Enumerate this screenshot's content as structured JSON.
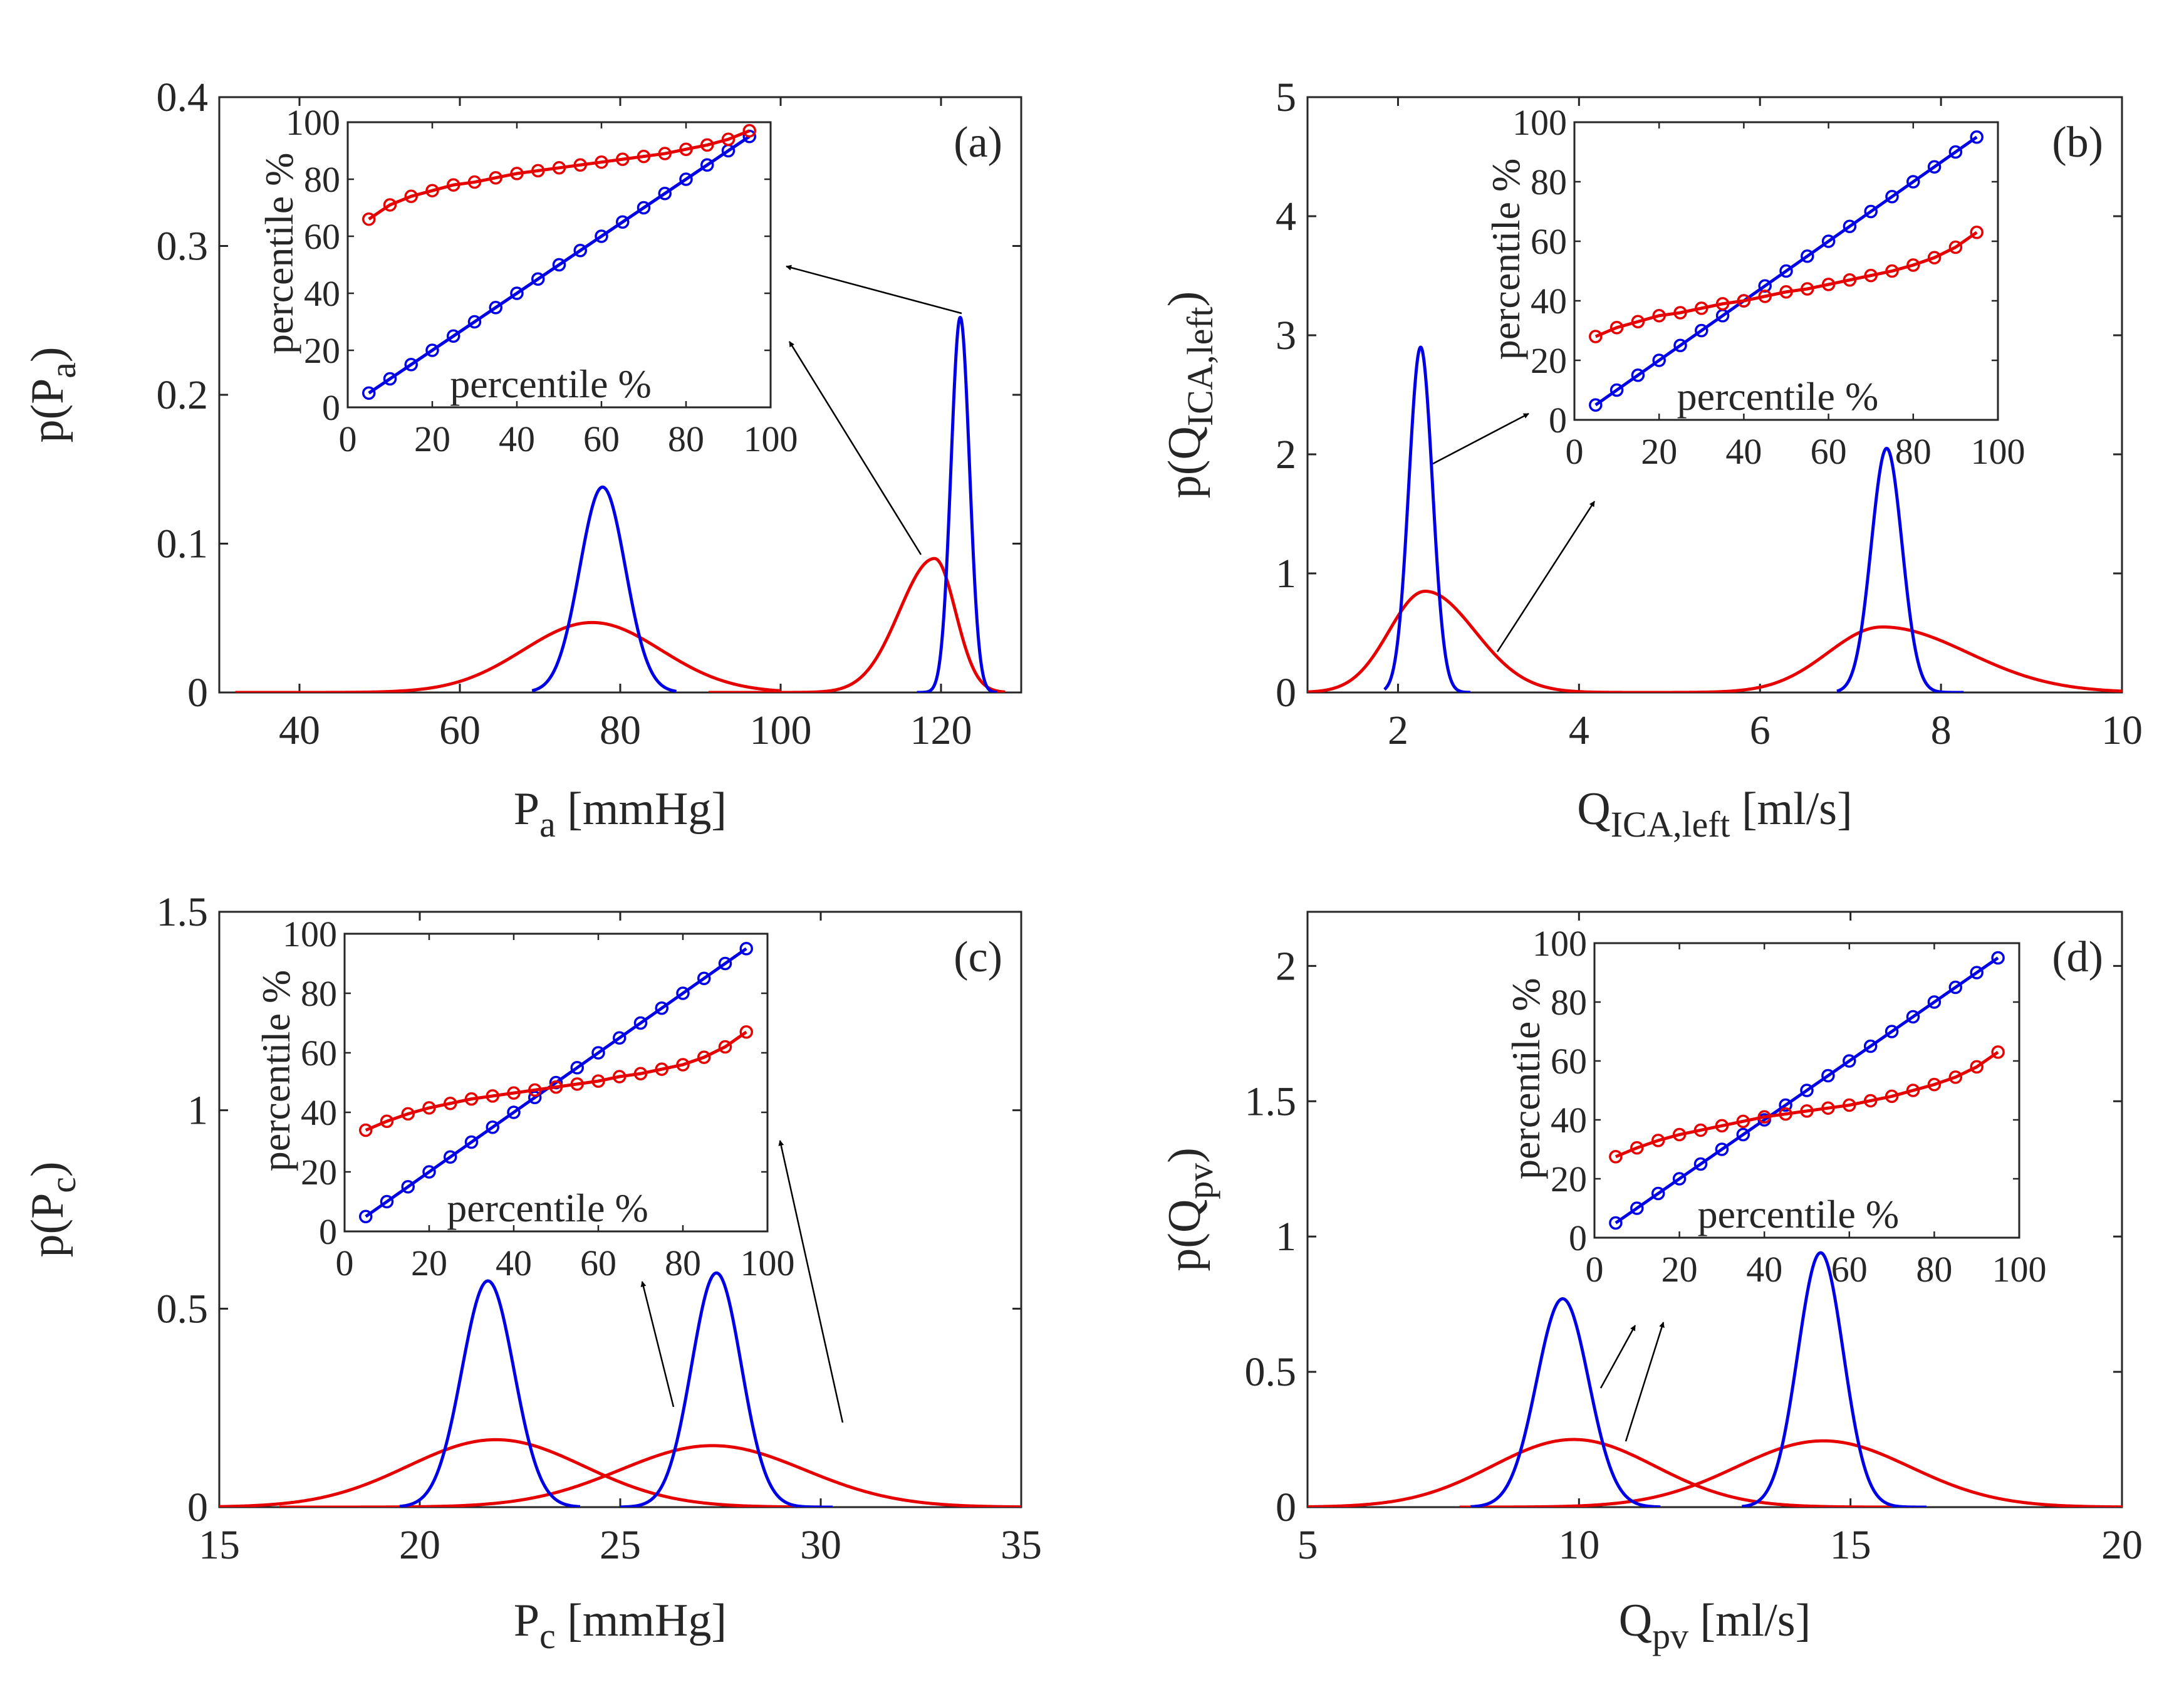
{
  "colors": {
    "blue": "#0000e6",
    "red": "#e60000",
    "axis": "#262626",
    "arrow": "#000000"
  },
  "chart_data": [
    {
      "type": "line",
      "panel_label": "(a)",
      "xlabel": {
        "main": "P",
        "sub": "a",
        "unit": " [mmHg]"
      },
      "ylabel": {
        "pre": "p(P",
        "sub": "a",
        "post": ")"
      },
      "xlim": [
        30,
        130
      ],
      "ylim": [
        0,
        0.4
      ],
      "xticks": [
        40,
        60,
        80,
        100,
        120
      ],
      "xticklabels": [
        "40",
        "60",
        "80",
        "100",
        "120"
      ],
      "yticks": [
        0,
        0.1,
        0.2,
        0.3,
        0.4
      ],
      "yticklabels": [
        "0",
        "0.1",
        "0.2",
        "0.3",
        "0.4"
      ],
      "grid": false,
      "series": [
        {
          "color": "blue",
          "components": [
            {
              "type": "gauss",
              "mu": 77.8,
              "sigma": 2.85,
              "peak": 0.138,
              "x0": 69,
              "x1": 87
            },
            {
              "type": "gauss",
              "mu": 122.4,
              "sigma": 1.15,
              "peak": 0.252,
              "x0": 117,
              "x1": 127
            }
          ]
        },
        {
          "color": "red",
          "components": [
            {
              "type": "gauss",
              "mu": 76.5,
              "sigma": 8.6,
              "peak": 0.047,
              "x0": 32,
              "x1": 100
            },
            {
              "type": "skewgauss",
              "mu": 119.2,
              "sigmaL": 4.4,
              "sigmaR": 2.6,
              "peak": 0.09,
              "x0": 91,
              "x1": 128
            }
          ]
        }
      ],
      "inset": {
        "xlim": [
          0,
          100
        ],
        "ylim": [
          0,
          100
        ],
        "xticks": [
          0,
          20,
          40,
          60,
          80,
          100
        ],
        "xticklabels": [
          "0",
          "20",
          "40",
          "60",
          "80",
          "100"
        ],
        "yticks": [
          0,
          20,
          40,
          60,
          80,
          100
        ],
        "yticklabels": [
          "0",
          "20",
          "40",
          "60",
          "80",
          "100"
        ],
        "xlabel": "percentile %",
        "ylabel": "percentile %",
        "x": [
          5,
          10,
          15,
          20,
          25,
          30,
          35,
          40,
          45,
          50,
          55,
          60,
          65,
          70,
          75,
          80,
          85,
          90,
          95
        ],
        "series": [
          {
            "color": "blue",
            "values": [
              5,
              10,
              15,
              20,
              25,
              30,
              35,
              40,
              45,
              50,
              55,
              60,
              65,
              70,
              75,
              80,
              85,
              90,
              95
            ]
          },
          {
            "color": "red",
            "values": [
              66,
              71,
              74,
              76,
              78,
              79,
              80.5,
              82,
              83,
              84,
              85,
              86,
              87,
              88,
              89,
              90.5,
              92,
              94,
              97
            ]
          }
        ]
      }
    },
    {
      "type": "line",
      "panel_label": "(b)",
      "xlabel": {
        "main": "Q",
        "sub": "ICA,left",
        "unit": " [ml/s]"
      },
      "ylabel": {
        "pre": "p(Q",
        "sub": "ICA,left",
        "post": ")"
      },
      "xlim": [
        1,
        10
      ],
      "ylim": [
        0,
        5
      ],
      "xticks": [
        2,
        4,
        6,
        8,
        10
      ],
      "xticklabels": [
        "2",
        "4",
        "6",
        "8",
        "10"
      ],
      "yticks": [
        0,
        1,
        2,
        3,
        4,
        5
      ],
      "yticklabels": [
        "0",
        "1",
        "2",
        "3",
        "4",
        "5"
      ],
      "grid": false,
      "series": [
        {
          "color": "blue",
          "components": [
            {
              "type": "gauss",
              "mu": 2.25,
              "sigma": 0.13,
              "peak": 2.9,
              "x0": 1.85,
              "x1": 2.8
            },
            {
              "type": "gauss",
              "mu": 7.4,
              "sigma": 0.17,
              "peak": 2.05,
              "x0": 6.85,
              "x1": 8.25
            }
          ]
        },
        {
          "color": "red",
          "components": [
            {
              "type": "skewgauss",
              "mu": 2.3,
              "sigmaL": 0.4,
              "sigmaR": 0.55,
              "peak": 0.85,
              "x0": 1.0,
              "x1": 5.3
            },
            {
              "type": "skewgauss",
              "mu": 7.35,
              "sigmaL": 0.6,
              "sigmaR": 0.95,
              "peak": 0.55,
              "x0": 4.6,
              "x1": 10.0
            }
          ]
        }
      ],
      "inset": {
        "xlim": [
          0,
          100
        ],
        "ylim": [
          0,
          100
        ],
        "xticks": [
          0,
          20,
          40,
          60,
          80,
          100
        ],
        "xticklabels": [
          "0",
          "20",
          "40",
          "60",
          "80",
          "100"
        ],
        "yticks": [
          0,
          20,
          40,
          60,
          80,
          100
        ],
        "yticklabels": [
          "0",
          "20",
          "40",
          "60",
          "80",
          "100"
        ],
        "xlabel": "percentile %",
        "ylabel": "percentile %",
        "x": [
          5,
          10,
          15,
          20,
          25,
          30,
          35,
          40,
          45,
          50,
          55,
          60,
          65,
          70,
          75,
          80,
          85,
          90,
          95
        ],
        "series": [
          {
            "color": "blue",
            "values": [
              5,
              10,
              15,
              20,
              25,
              30,
              35,
              40,
              45,
              50,
              55,
              60,
              65,
              70,
              75,
              80,
              85,
              90,
              95
            ]
          },
          {
            "color": "red",
            "values": [
              28,
              31,
              33,
              35,
              36,
              37.5,
              39,
              40,
              41.5,
              43,
              44,
              45.5,
              47,
              48.5,
              50,
              52,
              54.5,
              58,
              63
            ]
          }
        ]
      }
    },
    {
      "type": "line",
      "panel_label": "(c)",
      "xlabel": {
        "main": "P",
        "sub": "c",
        "unit": " [mmHg]"
      },
      "ylabel": {
        "pre": "p(P",
        "sub": "c",
        "post": ")"
      },
      "xlim": [
        15,
        35
      ],
      "ylim": [
        0,
        1.5
      ],
      "xticks": [
        15,
        20,
        25,
        30,
        35
      ],
      "xticklabels": [
        "15",
        "20",
        "25",
        "30",
        "35"
      ],
      "yticks": [
        0,
        0.5,
        1,
        1.5
      ],
      "yticklabels": [
        "0",
        "0.5",
        "1",
        "1.5"
      ],
      "grid": false,
      "series": [
        {
          "color": "blue",
          "components": [
            {
              "type": "gauss",
              "mu": 21.7,
              "sigma": 0.65,
              "peak": 0.57,
              "x0": 19.5,
              "x1": 24.0
            },
            {
              "type": "gauss",
              "mu": 27.4,
              "sigma": 0.62,
              "peak": 0.59,
              "x0": 25.0,
              "x1": 30.3
            }
          ]
        },
        {
          "color": "red",
          "components": [
            {
              "type": "gauss",
              "mu": 21.9,
              "sigma": 2.2,
              "peak": 0.17,
              "x0": 15.0,
              "x1": 30.0
            },
            {
              "type": "gauss",
              "mu": 27.3,
              "sigma": 2.3,
              "peak": 0.155,
              "x0": 16.5,
              "x1": 35.0
            }
          ]
        }
      ],
      "inset": {
        "xlim": [
          0,
          100
        ],
        "ylim": [
          0,
          100
        ],
        "xticks": [
          0,
          20,
          40,
          60,
          80,
          100
        ],
        "xticklabels": [
          "0",
          "20",
          "40",
          "60",
          "80",
          "100"
        ],
        "yticks": [
          0,
          20,
          40,
          60,
          80,
          100
        ],
        "yticklabels": [
          "0",
          "20",
          "40",
          "60",
          "80",
          "100"
        ],
        "xlabel": "percentile %",
        "ylabel": "percentile %",
        "x": [
          5,
          10,
          15,
          20,
          25,
          30,
          35,
          40,
          45,
          50,
          55,
          60,
          65,
          70,
          75,
          80,
          85,
          90,
          95
        ],
        "series": [
          {
            "color": "blue",
            "values": [
              5,
              10,
              15,
              20,
              25,
              30,
              35,
              40,
              45,
              50,
              55,
              60,
              65,
              70,
              75,
              80,
              85,
              90,
              95
            ]
          },
          {
            "color": "red",
            "values": [
              34,
              37,
              39.5,
              41.5,
              43,
              44.5,
              45.5,
              46.5,
              47.5,
              48.5,
              49.5,
              50.5,
              52,
              53,
              54.5,
              56,
              58.5,
              62,
              67
            ]
          }
        ]
      }
    },
    {
      "type": "line",
      "panel_label": "(d)",
      "xlabel": {
        "main": "Q",
        "sub": "pv",
        "unit": " [ml/s]"
      },
      "ylabel": {
        "pre": "p(Q",
        "sub": "pv",
        "post": ")"
      },
      "xlim": [
        5,
        20
      ],
      "ylim": [
        0,
        2.2
      ],
      "xticks": [
        5,
        10,
        15,
        20
      ],
      "xticklabels": [
        "5",
        "10",
        "15",
        "20"
      ],
      "yticks": [
        0,
        0.5,
        1,
        1.5,
        2
      ],
      "yticklabels": [
        "0",
        "0.5",
        "1",
        "1.5",
        "2"
      ],
      "grid": false,
      "series": [
        {
          "color": "blue",
          "components": [
            {
              "type": "gauss",
              "mu": 9.7,
              "sigma": 0.48,
              "peak": 0.77,
              "x0": 8.0,
              "x1": 11.5
            },
            {
              "type": "gauss",
              "mu": 14.45,
              "sigma": 0.42,
              "peak": 0.94,
              "x0": 13.0,
              "x1": 16.4
            }
          ]
        },
        {
          "color": "red",
          "components": [
            {
              "type": "gauss",
              "mu": 9.9,
              "sigma": 1.5,
              "peak": 0.25,
              "x0": 5.0,
              "x1": 16.0
            },
            {
              "type": "gauss",
              "mu": 14.5,
              "sigma": 1.6,
              "peak": 0.245,
              "x0": 7.8,
              "x1": 20.0
            }
          ]
        }
      ],
      "inset": {
        "xlim": [
          0,
          100
        ],
        "ylim": [
          0,
          100
        ],
        "xticks": [
          0,
          20,
          40,
          60,
          80,
          100
        ],
        "xticklabels": [
          "0",
          "20",
          "40",
          "60",
          "80",
          "100"
        ],
        "yticks": [
          0,
          20,
          40,
          60,
          80,
          100
        ],
        "yticklabels": [
          "0",
          "20",
          "40",
          "60",
          "80",
          "100"
        ],
        "xlabel": "percentile %",
        "ylabel": "percentile %",
        "x": [
          5,
          10,
          15,
          20,
          25,
          30,
          35,
          40,
          45,
          50,
          55,
          60,
          65,
          70,
          75,
          80,
          85,
          90,
          95
        ],
        "series": [
          {
            "color": "blue",
            "values": [
              5,
              10,
              15,
              20,
              25,
              30,
              35,
              40,
              45,
              50,
              55,
              60,
              65,
              70,
              75,
              80,
              85,
              90,
              95
            ]
          },
          {
            "color": "red",
            "values": [
              27.5,
              30.5,
              33,
              35,
              36.5,
              38,
              39.5,
              41,
              42,
              43,
              44,
              45,
              46.5,
              48,
              50,
              52,
              54.5,
              58,
              63
            ]
          }
        ]
      }
    }
  ]
}
